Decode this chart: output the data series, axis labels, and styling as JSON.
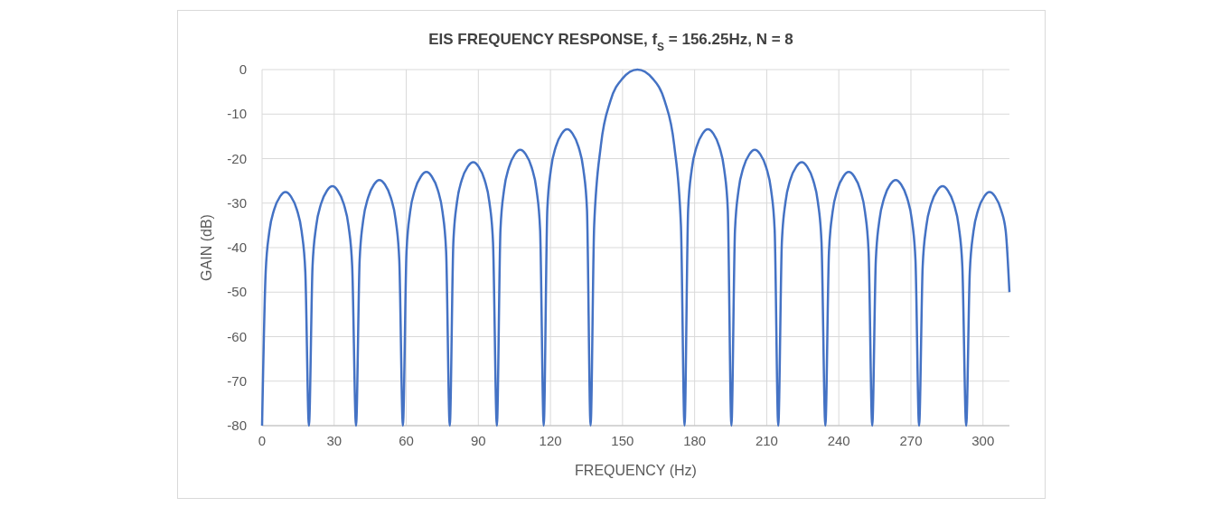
{
  "chart_data": {
    "type": "line",
    "title": "EIS FREQUENCY RESPONSE, f$_{S}$ = 156.25Hz, N = 8",
    "xlabel": "FREQUENCY (Hz)",
    "ylabel": "GAIN (dB)",
    "xlim": [
      0,
      311
    ],
    "xticks": [
      0,
      30,
      60,
      90,
      120,
      150,
      180,
      210,
      240,
      270,
      300
    ],
    "ylim": [
      -80,
      0
    ],
    "yticks": [
      -80,
      -70,
      -60,
      -50,
      -40,
      -30,
      -20,
      -10,
      0
    ],
    "grid": true,
    "marker": "none",
    "line_style": "solid",
    "series": [
      {
        "color": "#4472c4",
        "x": [
          0,
          1.5,
          3,
          5,
          7.5,
          9.75,
          12,
          14.5,
          16.5,
          18,
          19.5,
          21,
          22.5,
          24.5,
          27,
          29.3,
          31.5,
          34,
          36,
          37.5,
          39.1,
          40.6,
          42.1,
          44.1,
          46.6,
          48.8,
          51.1,
          53.6,
          55.6,
          57.1,
          58.6,
          60.1,
          61.6,
          63.6,
          66.1,
          68.4,
          70.6,
          73.1,
          75.1,
          76.6,
          78.1,
          79.6,
          81.1,
          83.1,
          85.6,
          87.9,
          90.1,
          92.6,
          94.6,
          96.1,
          97.7,
          99.2,
          100.7,
          102.7,
          105.2,
          107.4,
          109.7,
          112.2,
          114.2,
          115.7,
          117.2,
          118.7,
          120.2,
          122.2,
          124.7,
          127,
          129.2,
          131.7,
          133.7,
          135.2,
          136.7,
          138.2,
          141,
          145,
          150,
          156.2,
          162.5,
          167.5,
          171.5,
          174.3,
          175.8,
          177.3,
          178.8,
          180.8,
          183.3,
          185.5,
          187.8,
          190.3,
          192.3,
          193.8,
          195.3,
          196.8,
          198.3,
          200.3,
          202.8,
          205,
          207.3,
          209.8,
          211.8,
          213.3,
          214.8,
          216.3,
          217.8,
          219.8,
          222.3,
          224.6,
          226.8,
          229.3,
          231.3,
          232.8,
          234.4,
          235.9,
          237.4,
          239.4,
          241.9,
          244.1,
          246.4,
          248.9,
          250.9,
          252.4,
          253.9,
          255.4,
          256.9,
          258.9,
          261.4,
          263.7,
          265.9,
          268.4,
          270.4,
          271.9,
          273.4,
          274.9,
          276.4,
          278.4,
          280.9,
          283.2,
          285.4,
          287.9,
          289.9,
          291.4,
          293,
          294.5,
          296,
          298,
          300.5,
          302.7,
          305,
          307.5,
          309.5,
          311
        ],
        "values": [
          -80,
          -45.5,
          -36.5,
          -31.5,
          -28.5,
          -27.5,
          -28.5,
          -31.5,
          -36.5,
          -45.5,
          -80,
          -44.2,
          -35.2,
          -30.2,
          -27.2,
          -26.2,
          -27.2,
          -30.2,
          -35.2,
          -44.2,
          -80,
          -42.8,
          -33.8,
          -28.8,
          -25.8,
          -24.8,
          -25.8,
          -28.8,
          -33.8,
          -42.8,
          -80,
          -41,
          -32,
          -27,
          -24,
          -23,
          -24,
          -27,
          -32,
          -41,
          -80,
          -38.8,
          -29.8,
          -24.8,
          -21.8,
          -20.8,
          -21.8,
          -24.8,
          -29.8,
          -38.8,
          -80,
          -36,
          -27,
          -22,
          -19,
          -18,
          -19,
          -22,
          -27,
          -36,
          -80,
          -31.4,
          -22.4,
          -17.4,
          -14.4,
          -13.4,
          -14.4,
          -17.4,
          -22.4,
          -31.4,
          -80,
          -35,
          -17,
          -7,
          -2,
          0,
          -2,
          -7,
          -17,
          -35,
          -80,
          -31.4,
          -22.4,
          -17.4,
          -14.4,
          -13.4,
          -14.4,
          -17.4,
          -22.4,
          -31.4,
          -80,
          -36,
          -27,
          -22,
          -19,
          -18,
          -19,
          -22,
          -27,
          -36,
          -80,
          -38.8,
          -29.8,
          -24.8,
          -21.8,
          -20.8,
          -21.8,
          -24.8,
          -29.8,
          -38.8,
          -80,
          -41,
          -32,
          -27,
          -24,
          -23,
          -24,
          -27,
          -32,
          -41,
          -80,
          -42.8,
          -33.8,
          -28.8,
          -25.8,
          -24.8,
          -25.8,
          -28.8,
          -33.8,
          -42.8,
          -80,
          -44.2,
          -35.2,
          -30.2,
          -27.2,
          -26.2,
          -27.2,
          -30.2,
          -35.2,
          -44.2,
          -80,
          -45.5,
          -36.5,
          -31.5,
          -28.5,
          -27.5,
          -28.5,
          -31.5,
          -36.5,
          -50
        ]
      }
    ]
  }
}
